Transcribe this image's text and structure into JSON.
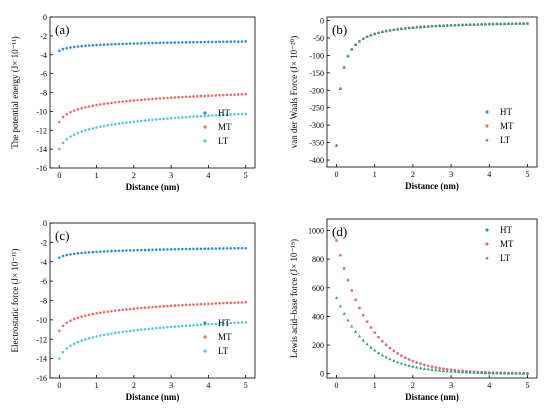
{
  "colors": {
    "HT": "#2f8fce",
    "MT": "#f26b6b",
    "LT": "#56c8e0",
    "LT_d": "#27a37a",
    "axis": "#000000"
  },
  "chart_data": [
    {
      "type": "scatter",
      "panel_label": "(a)",
      "xlabel": "Distance (nm)",
      "ylabel": "The potential energy (J× 10⁻¹¹)",
      "xlim": [
        -0.25,
        5.25
      ],
      "ylim": [
        -16,
        0
      ],
      "xticks": [
        0,
        1,
        2,
        3,
        4,
        5
      ],
      "yticks": [
        -16,
        -14,
        -12,
        -10,
        -8,
        -6,
        -4,
        -2,
        0
      ],
      "legend_position": "lower-right",
      "series": [
        {
          "name": "HT",
          "color_key": "HT",
          "marker": "circle",
          "model": "log",
          "a": -3.0,
          "b": 0.25,
          "x0": 0.1
        },
        {
          "name": "MT",
          "color_key": "MT",
          "marker": "circle",
          "model": "log",
          "a": -9.4,
          "b": 0.75,
          "x0": 0.1
        },
        {
          "name": "LT",
          "color_key": "LT",
          "marker": "circle",
          "model": "log",
          "a": -11.8,
          "b": 0.95,
          "x0": 0.1
        }
      ]
    },
    {
      "type": "scatter",
      "panel_label": "(b)",
      "xlabel": "Distance (nm)",
      "ylabel": "van der Waals Force (J× 10⁻²⁰)",
      "xlim": [
        -0.25,
        5.25
      ],
      "ylim": [
        -420,
        10
      ],
      "xticks": [
        0,
        1,
        2,
        3,
        4,
        5
      ],
      "yticks": [
        -400,
        -350,
        -300,
        -250,
        -200,
        -150,
        -100,
        -50,
        0
      ],
      "legend_position": "lower-right",
      "series": [
        {
          "name": "HT",
          "color_key": "HT",
          "marker": "circle",
          "model": "inv",
          "k": -43,
          "x0": 0.12
        },
        {
          "name": "MT",
          "color_key": "MT",
          "marker": "circle",
          "model": "inv",
          "k": -43,
          "x0": 0.12
        },
        {
          "name": "LT",
          "color_key": "LT_d",
          "marker": "triangle",
          "model": "inv",
          "k": -43,
          "x0": 0.12
        }
      ]
    },
    {
      "type": "scatter",
      "panel_label": "(c)",
      "xlabel": "Distance (nm)",
      "ylabel": "Electrostatic force (J× 10⁻¹¹)",
      "xlim": [
        -0.25,
        5.25
      ],
      "ylim": [
        -16,
        0
      ],
      "xticks": [
        0,
        1,
        2,
        3,
        4,
        5
      ],
      "yticks": [
        -16,
        -14,
        -12,
        -10,
        -8,
        -6,
        -4,
        -2,
        0
      ],
      "legend_position": "lower-right",
      "series": [
        {
          "name": "HT",
          "color_key": "HT",
          "marker": "circle",
          "model": "log",
          "a": -3.0,
          "b": 0.25,
          "x0": 0.1
        },
        {
          "name": "MT",
          "color_key": "MT",
          "marker": "circle",
          "model": "log",
          "a": -9.4,
          "b": 0.75,
          "x0": 0.1
        },
        {
          "name": "LT",
          "color_key": "LT",
          "marker": "circle",
          "model": "log",
          "a": -11.8,
          "b": 0.95,
          "x0": 0.1
        }
      ]
    },
    {
      "type": "scatter",
      "panel_label": "(d)",
      "xlabel": "Distance (nm)",
      "ylabel": "Lewis acid–base force (J× 10⁻¹⁹)",
      "xlim": [
        -0.25,
        5.25
      ],
      "ylim": [
        -30,
        1080
      ],
      "xticks": [
        0,
        1,
        2,
        3,
        4,
        5
      ],
      "yticks": [
        0,
        200,
        400,
        600,
        800,
        1000
      ],
      "legend_position": "top-right",
      "series": [
        {
          "name": "HT",
          "color_key": "HT",
          "marker": "circle",
          "model": "exp",
          "A": 930,
          "t": 0.85
        },
        {
          "name": "MT",
          "color_key": "MT",
          "marker": "circle",
          "model": "exp",
          "A": 930,
          "t": 0.85
        },
        {
          "name": "LT",
          "color_key": "LT_d",
          "marker": "triangle",
          "model": "exp",
          "A": 530,
          "t": 0.85
        }
      ]
    }
  ]
}
